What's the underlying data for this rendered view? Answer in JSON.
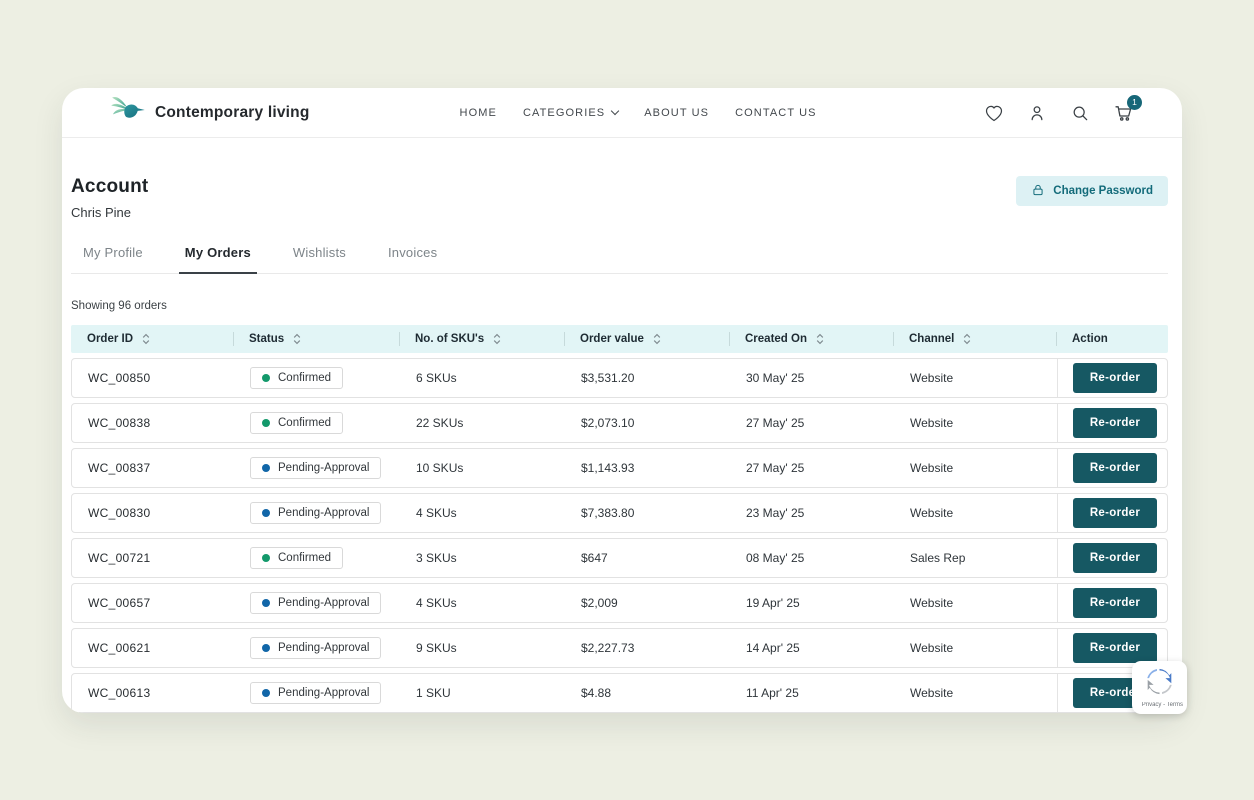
{
  "brand": {
    "name": "Contemporary living"
  },
  "nav": {
    "items": [
      {
        "label": "HOME",
        "dropdown": false
      },
      {
        "label": "CATEGORIES",
        "dropdown": true
      },
      {
        "label": "ABOUT US",
        "dropdown": false
      },
      {
        "label": "CONTACT US",
        "dropdown": false
      }
    ],
    "icons": [
      "wishlist-heart",
      "account-person",
      "search",
      "cart"
    ],
    "cart_count": "1"
  },
  "account": {
    "title": "Account",
    "user_name": "Chris Pine",
    "change_password_label": "Change Password"
  },
  "tabs": [
    {
      "label": "My Profile",
      "active": false
    },
    {
      "label": "My Orders",
      "active": true
    },
    {
      "label": "Wishlists",
      "active": false
    },
    {
      "label": "Invoices",
      "active": false
    }
  ],
  "orders": {
    "summary": "Showing 96 orders",
    "columns": [
      "Order ID",
      "Status",
      "No. of SKU's",
      "Order value",
      "Created On",
      "Channel",
      "Action"
    ],
    "sortable": [
      true,
      true,
      true,
      true,
      true,
      true,
      false
    ],
    "action_label": "Re-order",
    "rows": [
      {
        "id": "WC_00850",
        "status": "Confirmed",
        "status_type": "confirmed",
        "skus": "6 SKUs",
        "value": "$3,531.20",
        "created": "30 May' 25",
        "channel": "Website"
      },
      {
        "id": "WC_00838",
        "status": "Confirmed",
        "status_type": "confirmed",
        "skus": "22 SKUs",
        "value": "$2,073.10",
        "created": "27 May' 25",
        "channel": "Website"
      },
      {
        "id": "WC_00837",
        "status": "Pending-Approval",
        "status_type": "pending",
        "skus": "10 SKUs",
        "value": "$1,143.93",
        "created": "27 May' 25",
        "channel": "Website"
      },
      {
        "id": "WC_00830",
        "status": "Pending-Approval",
        "status_type": "pending",
        "skus": "4 SKUs",
        "value": "$7,383.80",
        "created": "23 May' 25",
        "channel": "Website"
      },
      {
        "id": "WC_00721",
        "status": "Confirmed",
        "status_type": "confirmed",
        "skus": "3 SKUs",
        "value": "$647",
        "created": "08 May' 25",
        "channel": "Sales Rep"
      },
      {
        "id": "WC_00657",
        "status": "Pending-Approval",
        "status_type": "pending",
        "skus": "4 SKUs",
        "value": "$2,009",
        "created": "19 Apr' 25",
        "channel": "Website"
      },
      {
        "id": "WC_00621",
        "status": "Pending-Approval",
        "status_type": "pending",
        "skus": "9 SKUs",
        "value": "$2,227.73",
        "created": "14 Apr' 25",
        "channel": "Website"
      },
      {
        "id": "WC_00613",
        "status": "Pending-Approval",
        "status_type": "pending",
        "skus": "1 SKU",
        "value": "$4.88",
        "created": "11 Apr' 25",
        "channel": "Website"
      }
    ]
  },
  "recaptcha": {
    "label": "Privacy - Terms"
  },
  "colors": {
    "page_bg": "#edefe3",
    "accent_teal": "#165863",
    "header_bg": "#e2f5f6",
    "change_password_bg": "#ddf1f4",
    "confirmed_dot": "#13996b",
    "pending_dot": "#1166a8",
    "cart_badge": "#176778"
  }
}
